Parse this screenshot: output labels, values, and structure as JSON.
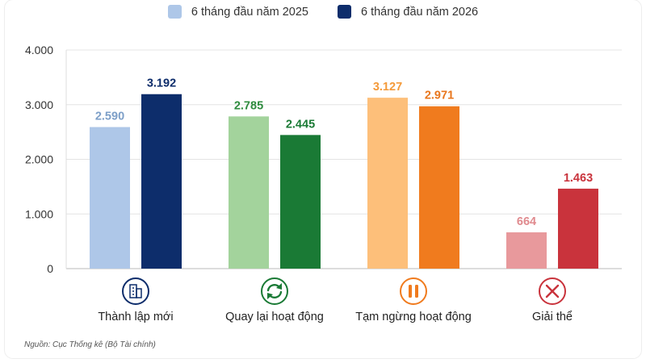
{
  "chart_data": {
    "type": "bar",
    "categories": [
      "Thành lập mới",
      "Quay lại hoạt động",
      "Tạm ngừng hoạt động",
      "Giải thể"
    ],
    "series": [
      {
        "name": "6 tháng đầu năm 2025",
        "values": [
          2590,
          2785,
          3127,
          664
        ],
        "labels": [
          "2.590",
          "2.785",
          "3.127",
          "664"
        ]
      },
      {
        "name": "6 tháng đầu năm 2026",
        "values": [
          3192,
          2445,
          2971,
          1463
        ],
        "labels": [
          "3.192",
          "2.445",
          "2.971",
          "1.463"
        ]
      }
    ],
    "ylim": [
      0,
      4000
    ],
    "yticks": [
      0,
      1000,
      2000,
      3000,
      4000
    ],
    "ytick_labels": [
      "0",
      "1.000",
      "2.000",
      "3.000",
      "4.000"
    ],
    "grid": true,
    "legend_position": "top-center",
    "legend_colors": [
      "#aec7e8",
      "#0d2d6b"
    ],
    "category_colors": [
      {
        "light": "#aec7e8",
        "dark": "#0d2d6b",
        "label_light": "#7d9fc8",
        "label_dark": "#0d2d6b"
      },
      {
        "light": "#a3d39c",
        "dark": "#1a7a35",
        "label_light": "#2e8b3e",
        "label_dark": "#1a7a35"
      },
      {
        "light": "#fdbf7a",
        "dark": "#f07b1e",
        "label_light": "#f49a3a",
        "label_dark": "#e8761c"
      },
      {
        "light": "#e8999c",
        "dark": "#c9333c",
        "label_light": "#e08a8e",
        "label_dark": "#c9333c"
      }
    ],
    "category_icons": [
      "building-icon",
      "refresh-icon",
      "pause-icon",
      "close-icon"
    ],
    "source": "Nguồn: Cục Thống kê (Bộ Tài chính)"
  }
}
